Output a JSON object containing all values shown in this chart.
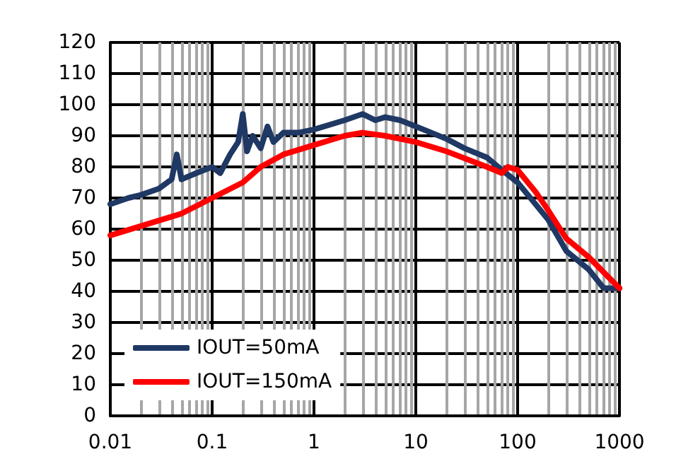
{
  "chart_data": {
    "type": "line",
    "log": "x",
    "grid": true,
    "legend": "bottom left",
    "marker": "none",
    "line_style": "solid",
    "xlim": [
      0.01,
      1000
    ],
    "xticks": [
      0.01,
      0.1,
      1,
      10,
      100,
      1000
    ],
    "ylim": [
      0,
      120
    ],
    "yticks": [
      0,
      10,
      20,
      30,
      40,
      50,
      60,
      70,
      80,
      90,
      100,
      110,
      120
    ],
    "series": [
      {
        "name": "IOUT=50mA",
        "color": "#1f3864",
        "x": [
          0.01,
          0.015,
          0.02,
          0.03,
          0.04,
          0.045,
          0.05,
          0.07,
          0.1,
          0.12,
          0.15,
          0.18,
          0.2,
          0.22,
          0.25,
          0.3,
          0.35,
          0.4,
          0.5,
          0.7,
          1,
          2,
          3,
          4,
          5,
          7,
          10,
          20,
          30,
          50,
          70,
          100,
          150,
          200,
          300,
          500,
          700,
          1000
        ],
        "values": [
          68,
          70,
          71,
          73,
          76,
          84,
          76,
          78,
          80,
          78,
          84,
          88,
          97,
          85,
          90,
          86,
          93,
          88,
          91,
          91,
          92,
          95,
          97,
          95,
          96,
          95,
          93,
          89,
          86,
          83,
          79,
          75,
          68,
          63,
          53,
          47,
          41,
          41
        ]
      },
      {
        "name": "IOUT=150mA",
        "color": "#ff0000",
        "x": [
          0.01,
          0.02,
          0.05,
          0.1,
          0.2,
          0.3,
          0.5,
          1,
          2,
          3,
          5,
          10,
          20,
          50,
          70,
          80,
          100,
          150,
          200,
          300,
          500,
          1000
        ],
        "values": [
          58,
          61,
          65,
          70,
          75,
          80,
          84,
          87,
          90,
          91,
          90,
          88,
          85,
          80,
          78,
          80,
          79,
          72,
          66,
          57,
          51,
          41
        ]
      }
    ]
  }
}
